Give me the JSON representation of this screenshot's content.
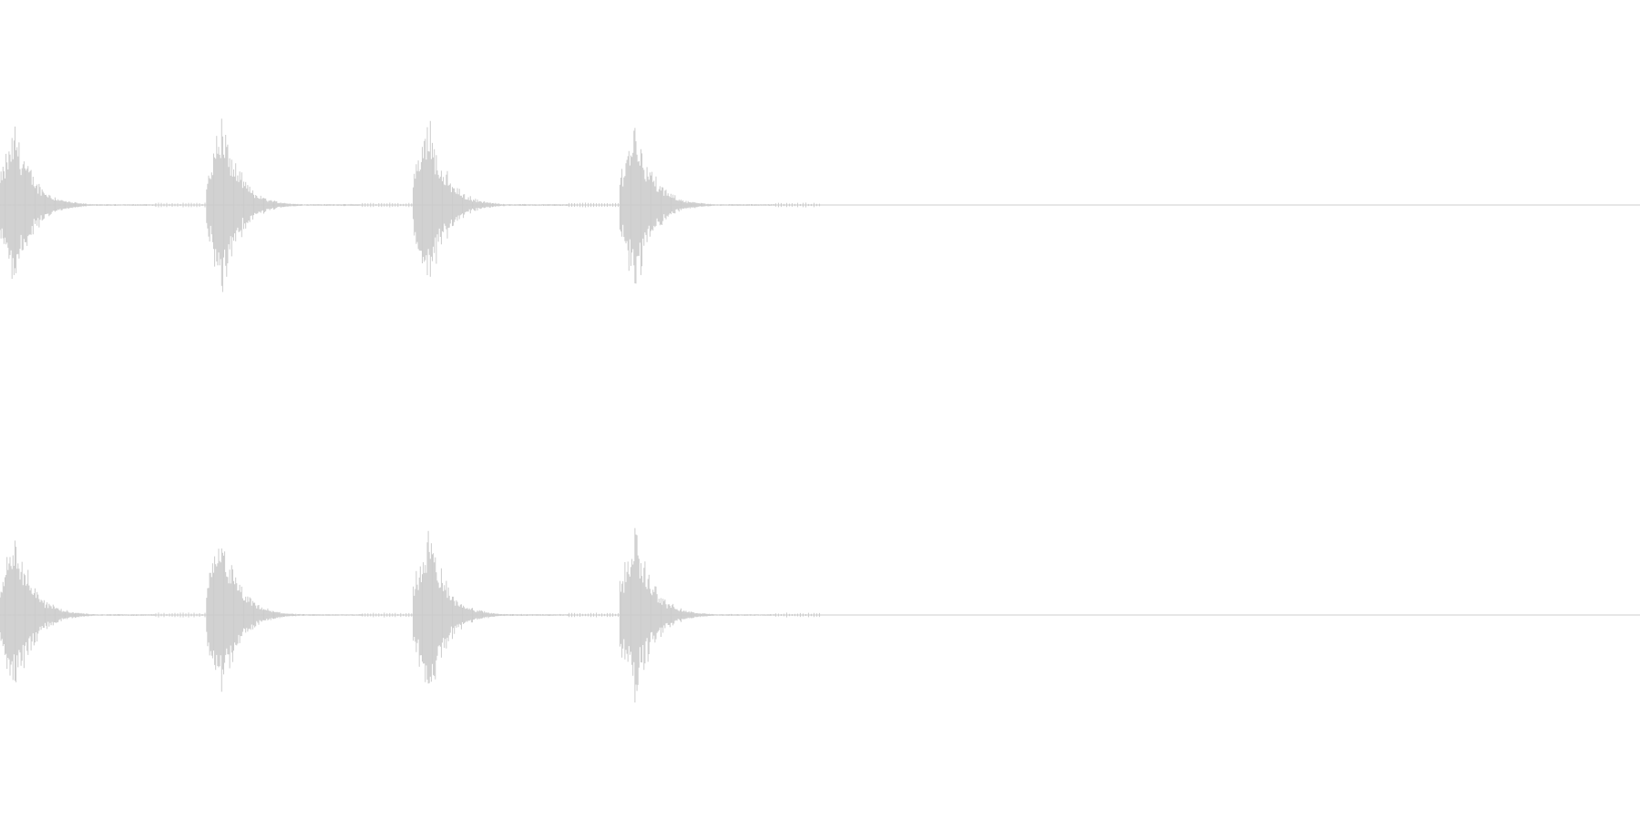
{
  "colors": {
    "background": "#ffffff",
    "waveform": "#cccccc",
    "baseline": "#cccccc"
  },
  "chart_data": {
    "type": "area",
    "title": "",
    "xlabel": "",
    "ylabel": "",
    "grid": false,
    "legend": "none",
    "description_free": true,
    "x_range": [
      0,
      1
    ],
    "y_range": [
      -1,
      1
    ],
    "channels": [
      {
        "bursts": [
          {
            "onset": 0.0,
            "peak_amplitude": 0.52
          },
          {
            "onset": 0.126,
            "peak_amplitude": 0.56
          },
          {
            "onset": 0.252,
            "peak_amplitude": 0.56
          },
          {
            "onset": 0.378,
            "peak_amplitude": 0.55
          }
        ],
        "tail_end": 0.5,
        "track_end": 1.0
      },
      {
        "bursts": [
          {
            "onset": 0.0,
            "peak_amplitude": 0.54
          },
          {
            "onset": 0.126,
            "peak_amplitude": 0.52
          },
          {
            "onset": 0.252,
            "peak_amplitude": 0.56
          },
          {
            "onset": 0.378,
            "peak_amplitude": 0.55
          }
        ],
        "tail_end": 0.5,
        "track_end": 1.0
      }
    ]
  }
}
